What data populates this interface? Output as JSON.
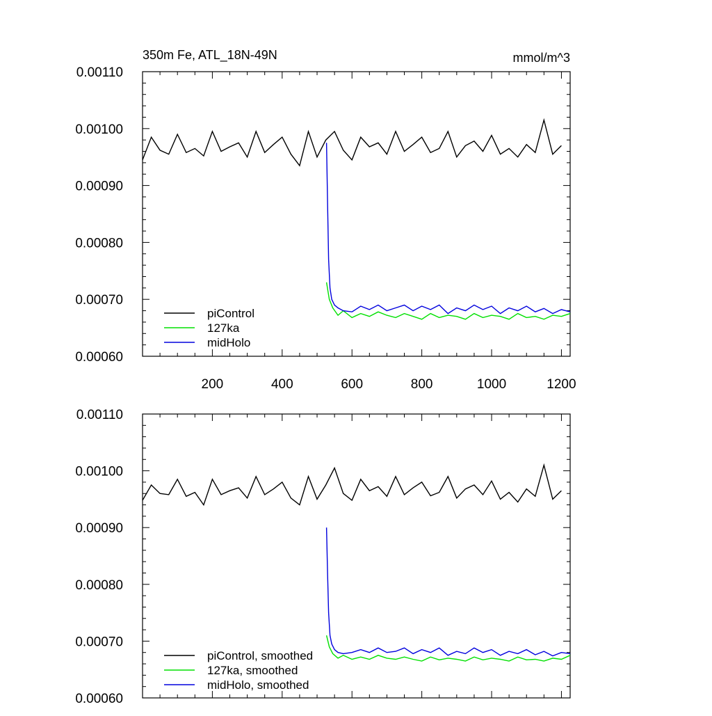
{
  "chart_data": [
    {
      "type": "line",
      "title": "350m Fe, ATL_18N-49N",
      "units": "mmol/m^3",
      "xlim": [
        0,
        1225
      ],
      "ylim": [
        0.0006,
        0.0011
      ],
      "x_ticks": [
        "200",
        "400",
        "600",
        "800",
        "1000",
        "1200"
      ],
      "y_ticks": [
        "0.00060",
        "0.00070",
        "0.00080",
        "0.00090",
        "0.00100",
        "0.00110"
      ],
      "legend_position": "bottom-left",
      "series": [
        {
          "name": "piControl",
          "color": "#000000",
          "x": [
            0,
            25,
            50,
            75,
            100,
            125,
            150,
            175,
            200,
            225,
            250,
            275,
            300,
            325,
            350,
            375,
            400,
            425,
            450,
            475,
            500,
            525,
            550,
            575,
            600,
            625,
            650,
            675,
            700,
            725,
            750,
            775,
            800,
            825,
            850,
            875,
            900,
            925,
            950,
            975,
            1000,
            1025,
            1050,
            1075,
            1100,
            1125,
            1150,
            1175,
            1200
          ],
          "values": [
            0.000945,
            0.000985,
            0.000962,
            0.000955,
            0.00099,
            0.000958,
            0.000965,
            0.000952,
            0.000995,
            0.00096,
            0.000968,
            0.000975,
            0.00095,
            0.000995,
            0.000958,
            0.000972,
            0.000985,
            0.000955,
            0.000935,
            0.000995,
            0.00095,
            0.00098,
            0.000995,
            0.000962,
            0.000945,
            0.000985,
            0.000968,
            0.000975,
            0.000955,
            0.000995,
            0.00096,
            0.000972,
            0.000985,
            0.000958,
            0.000965,
            0.000995,
            0.00095,
            0.00097,
            0.000978,
            0.00096,
            0.000988,
            0.000955,
            0.000965,
            0.00095,
            0.000972,
            0.000958,
            0.001015,
            0.000955,
            0.00097
          ]
        },
        {
          "name": "127ka",
          "color": "#00e000",
          "x": [
            527,
            535,
            545,
            560,
            575,
            600,
            625,
            650,
            675,
            700,
            725,
            750,
            775,
            800,
            825,
            850,
            875,
            900,
            925,
            950,
            975,
            1000,
            1025,
            1050,
            1075,
            1100,
            1125,
            1150,
            1175,
            1200,
            1225
          ],
          "values": [
            0.00073,
            0.0007,
            0.000685,
            0.000672,
            0.00068,
            0.000668,
            0.000675,
            0.00067,
            0.000678,
            0.000672,
            0.000668,
            0.000675,
            0.00067,
            0.000665,
            0.000675,
            0.000668,
            0.000672,
            0.00067,
            0.000665,
            0.000675,
            0.000668,
            0.000672,
            0.00067,
            0.000665,
            0.000675,
            0.000668,
            0.00067,
            0.000665,
            0.000672,
            0.00067,
            0.000675
          ]
        },
        {
          "name": "midHolo",
          "color": "#0000dd",
          "x": [
            527,
            530,
            533,
            537,
            542,
            550,
            560,
            575,
            600,
            625,
            650,
            675,
            700,
            725,
            750,
            775,
            800,
            825,
            850,
            875,
            900,
            925,
            950,
            975,
            1000,
            1025,
            1050,
            1075,
            1100,
            1125,
            1150,
            1175,
            1200,
            1225
          ],
          "values": [
            0.000975,
            0.00087,
            0.00077,
            0.00072,
            0.0007,
            0.00069,
            0.000685,
            0.00068,
            0.000678,
            0.000688,
            0.000682,
            0.00069,
            0.00068,
            0.000685,
            0.00069,
            0.00068,
            0.000688,
            0.000682,
            0.00069,
            0.000675,
            0.000685,
            0.00068,
            0.00069,
            0.000682,
            0.000688,
            0.000675,
            0.000685,
            0.00068,
            0.000688,
            0.000678,
            0.000684,
            0.000675,
            0.000682,
            0.000678
          ]
        }
      ]
    },
    {
      "type": "line",
      "xlim": [
        0,
        1225
      ],
      "ylim": [
        0.0006,
        0.0011
      ],
      "y_ticks": [
        "0.00060",
        "0.00070",
        "0.00080",
        "0.00090",
        "0.00100",
        "0.00110"
      ],
      "legend_position": "bottom-left",
      "series": [
        {
          "name": "piControl, smoothed",
          "color": "#000000",
          "x": [
            0,
            25,
            50,
            75,
            100,
            125,
            150,
            175,
            200,
            225,
            250,
            275,
            300,
            325,
            350,
            375,
            400,
            425,
            450,
            475,
            500,
            525,
            550,
            575,
            600,
            625,
            650,
            675,
            700,
            725,
            750,
            775,
            800,
            825,
            850,
            875,
            900,
            925,
            950,
            975,
            1000,
            1025,
            1050,
            1075,
            1100,
            1125,
            1150,
            1175,
            1200
          ],
          "values": [
            0.000948,
            0.000975,
            0.00096,
            0.000958,
            0.000985,
            0.000955,
            0.000962,
            0.00094,
            0.000985,
            0.000958,
            0.000965,
            0.00097,
            0.000952,
            0.00099,
            0.000958,
            0.000968,
            0.00098,
            0.000952,
            0.00094,
            0.00099,
            0.00095,
            0.000975,
            0.001005,
            0.00096,
            0.000948,
            0.000985,
            0.000965,
            0.000972,
            0.000955,
            0.00099,
            0.000958,
            0.00097,
            0.00098,
            0.000956,
            0.000962,
            0.00099,
            0.000952,
            0.000968,
            0.000975,
            0.000958,
            0.000982,
            0.00095,
            0.000962,
            0.000945,
            0.000968,
            0.000955,
            0.00101,
            0.00095,
            0.000965
          ]
        },
        {
          "name": "127ka, smoothed",
          "color": "#00e000",
          "x": [
            527,
            535,
            545,
            560,
            575,
            600,
            625,
            650,
            675,
            700,
            725,
            750,
            775,
            800,
            825,
            850,
            875,
            900,
            925,
            950,
            975,
            1000,
            1025,
            1050,
            1075,
            1100,
            1125,
            1150,
            1175,
            1200,
            1225
          ],
          "values": [
            0.00071,
            0.00069,
            0.000678,
            0.00067,
            0.000675,
            0.000668,
            0.000672,
            0.000668,
            0.000675,
            0.00067,
            0.000668,
            0.000672,
            0.000668,
            0.000665,
            0.000672,
            0.000667,
            0.00067,
            0.000668,
            0.000665,
            0.000672,
            0.000667,
            0.00067,
            0.000668,
            0.000665,
            0.000672,
            0.000667,
            0.000668,
            0.000665,
            0.00067,
            0.000668,
            0.000675
          ]
        },
        {
          "name": "midHolo, smoothed",
          "color": "#0000dd",
          "x": [
            527,
            530,
            533,
            537,
            542,
            550,
            560,
            575,
            600,
            625,
            650,
            675,
            700,
            725,
            750,
            775,
            800,
            825,
            850,
            875,
            900,
            925,
            950,
            975,
            1000,
            1025,
            1050,
            1075,
            1100,
            1125,
            1150,
            1175,
            1200,
            1225
          ],
          "values": [
            0.0009,
            0.00082,
            0.00075,
            0.00071,
            0.000695,
            0.000685,
            0.00068,
            0.000678,
            0.00068,
            0.000685,
            0.00068,
            0.000688,
            0.00068,
            0.000682,
            0.000688,
            0.000678,
            0.000685,
            0.00068,
            0.000688,
            0.000675,
            0.000682,
            0.000678,
            0.000688,
            0.00068,
            0.000685,
            0.000675,
            0.000682,
            0.000678,
            0.000685,
            0.000676,
            0.000682,
            0.000674,
            0.00068,
            0.000678
          ]
        }
      ]
    }
  ]
}
